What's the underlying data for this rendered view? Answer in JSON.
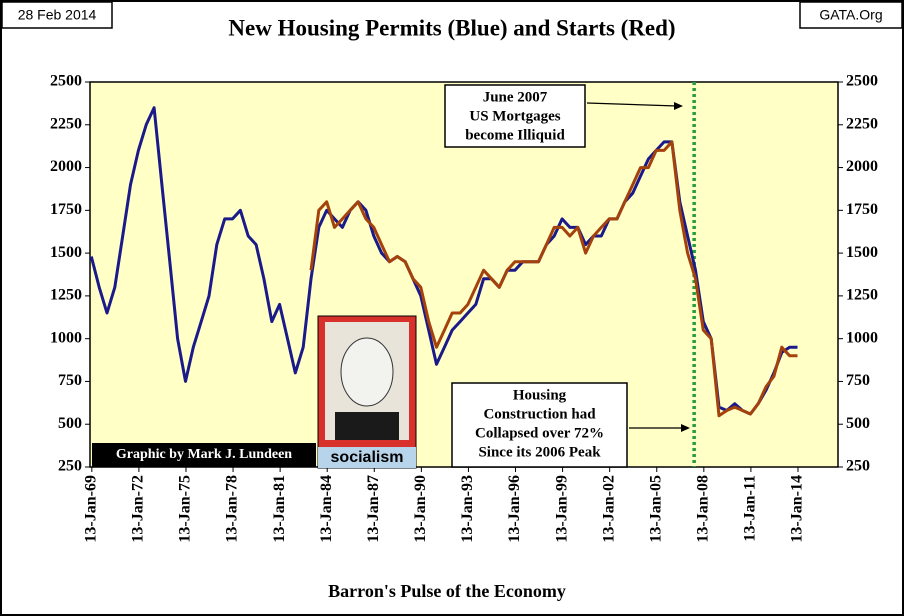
{
  "chart_data": {
    "type": "line",
    "title": "New Housing Permits (Blue) and Starts (Red)",
    "date_stamp": "28 Feb 2014",
    "source": "GATA.Org",
    "x_label": "Barron's Pulse of the Economy",
    "credit": "Graphic by Mark J. Lundeen",
    "image_caption": "socialism",
    "annotations": [
      {
        "lines": [
          "June 2007",
          "US Mortgages",
          "become Illiquid"
        ]
      },
      {
        "lines": [
          "Housing",
          "Construction had",
          "Collapsed over 72%",
          "Since its 2006  Peak"
        ]
      }
    ],
    "vline_x": "2007-06",
    "x": [
      "1969-01",
      "1969-07",
      "1970-01",
      "1970-07",
      "1971-01",
      "1971-07",
      "1972-01",
      "1972-07",
      "1973-01",
      "1973-07",
      "1974-01",
      "1974-07",
      "1975-01",
      "1975-07",
      "1976-01",
      "1976-07",
      "1977-01",
      "1977-07",
      "1978-01",
      "1978-07",
      "1979-01",
      "1979-07",
      "1980-01",
      "1980-07",
      "1981-01",
      "1981-07",
      "1982-01",
      "1982-07",
      "1983-01",
      "1983-07",
      "1984-01",
      "1984-07",
      "1985-01",
      "1985-07",
      "1986-01",
      "1986-07",
      "1987-01",
      "1987-07",
      "1988-01",
      "1988-07",
      "1989-01",
      "1989-07",
      "1990-01",
      "1990-07",
      "1991-01",
      "1991-07",
      "1992-01",
      "1992-07",
      "1993-01",
      "1993-07",
      "1994-01",
      "1994-07",
      "1995-01",
      "1995-07",
      "1996-01",
      "1996-07",
      "1997-01",
      "1997-07",
      "1998-01",
      "1998-07",
      "1999-01",
      "1999-07",
      "2000-01",
      "2000-07",
      "2001-01",
      "2001-07",
      "2002-01",
      "2002-07",
      "2003-01",
      "2003-07",
      "2004-01",
      "2004-07",
      "2005-01",
      "2005-07",
      "2006-01",
      "2006-07",
      "2007-01",
      "2007-07",
      "2008-01",
      "2008-07",
      "2009-01",
      "2009-07",
      "2010-01",
      "2010-07",
      "2011-01",
      "2011-07",
      "2012-01",
      "2012-07",
      "2013-01",
      "2013-07",
      "2014-01"
    ],
    "series": [
      {
        "name": "Permits",
        "color": "#1a1a8a",
        "values": [
          1480,
          1300,
          1150,
          1300,
          1600,
          1900,
          2100,
          2250,
          2350,
          1900,
          1450,
          1000,
          750,
          950,
          1100,
          1250,
          1550,
          1700,
          1700,
          1750,
          1600,
          1550,
          1350,
          1100,
          1200,
          1000,
          800,
          950,
          1350,
          1650,
          1750,
          1700,
          1650,
          1750,
          1800,
          1750,
          1600,
          1500,
          1450,
          1480,
          1450,
          1350,
          1250,
          1050,
          850,
          950,
          1050,
          1100,
          1150,
          1200,
          1350,
          1350,
          1300,
          1400,
          1400,
          1450,
          1450,
          1450,
          1550,
          1600,
          1700,
          1650,
          1650,
          1550,
          1600,
          1600,
          1700,
          1700,
          1800,
          1850,
          1950,
          2050,
          2100,
          2150,
          2150,
          1800,
          1600,
          1400,
          1100,
          1000,
          600,
          580,
          620,
          580,
          560,
          620,
          700,
          800,
          920,
          950,
          950
        ]
      },
      {
        "name": "Starts",
        "color": "#a5420c",
        "values": [
          null,
          null,
          null,
          null,
          null,
          null,
          null,
          null,
          null,
          null,
          null,
          null,
          null,
          null,
          null,
          null,
          null,
          null,
          null,
          null,
          null,
          null,
          null,
          null,
          null,
          null,
          null,
          null,
          1400,
          1750,
          1800,
          1650,
          1700,
          1750,
          1800,
          1700,
          1650,
          1550,
          1450,
          1480,
          1450,
          1350,
          1300,
          1100,
          950,
          1050,
          1150,
          1150,
          1200,
          1300,
          1400,
          1350,
          1300,
          1400,
          1450,
          1450,
          1450,
          1450,
          1550,
          1650,
          1650,
          1600,
          1650,
          1500,
          1600,
          1650,
          1700,
          1700,
          1800,
          1900,
          2000,
          2000,
          2100,
          2100,
          2150,
          1750,
          1500,
          1350,
          1050,
          1000,
          550,
          580,
          600,
          580,
          560,
          620,
          720,
          780,
          950,
          900,
          900
        ]
      }
    ],
    "xlim": [
      "1968-12",
      "2016-08"
    ],
    "xticks": [
      {
        "value": "1969-01-13",
        "label": "13-Jan-69"
      },
      {
        "value": "1972-01-13",
        "label": "13-Jan-72"
      },
      {
        "value": "1975-01-13",
        "label": "13-Jan-75"
      },
      {
        "value": "1978-01-13",
        "label": "13-Jan-78"
      },
      {
        "value": "1981-01-13",
        "label": "13-Jan-81"
      },
      {
        "value": "1984-01-13",
        "label": "13-Jan-84"
      },
      {
        "value": "1987-01-13",
        "label": "13-Jan-87"
      },
      {
        "value": "1990-01-13",
        "label": "13-Jan-90"
      },
      {
        "value": "1993-01-13",
        "label": "13-Jan-93"
      },
      {
        "value": "1996-01-13",
        "label": "13-Jan-96"
      },
      {
        "value": "1999-01-13",
        "label": "13-Jan-99"
      },
      {
        "value": "2002-01-13",
        "label": "13-Jan-02"
      },
      {
        "value": "2005-01-13",
        "label": "13-Jan-05"
      },
      {
        "value": "2008-01-13",
        "label": "13-Jan-08"
      },
      {
        "value": "2011-01-13",
        "label": "13-Jan-11"
      },
      {
        "value": "2014-01-13",
        "label": "13-Jan-14"
      }
    ],
    "ylim": [
      250,
      2500
    ],
    "yticks": [
      250,
      500,
      750,
      1000,
      1250,
      1500,
      1750,
      2000,
      2250,
      2500
    ],
    "y2lim": [
      250,
      2500
    ],
    "y2ticks": [
      250,
      500,
      750,
      1000,
      1250,
      1500,
      1750,
      2000,
      2250,
      2500
    ],
    "background": "#ffffc6"
  }
}
